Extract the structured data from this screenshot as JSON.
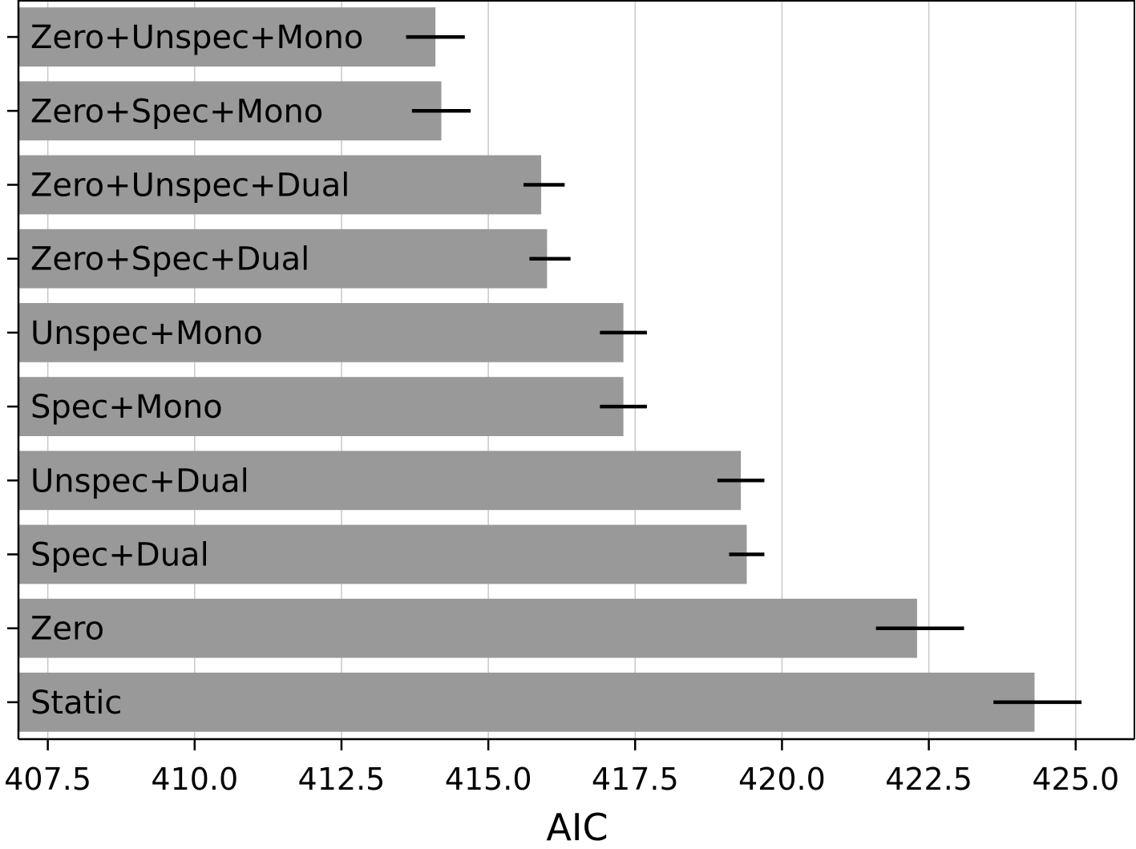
{
  "chart_data": {
    "type": "bar",
    "orientation": "horizontal",
    "title": "",
    "xlabel": "AIC",
    "ylabel": "",
    "categories": [
      "Zero+Unspec+Mono",
      "Zero+Spec+Mono",
      "Zero+Unspec+Dual",
      "Zero+Spec+Dual",
      "Unspec+Mono",
      "Spec+Mono",
      "Unspec+Dual",
      "Spec+Dual",
      "Zero",
      "Static"
    ],
    "values": [
      414.1,
      414.2,
      415.9,
      416.0,
      417.3,
      417.3,
      419.3,
      419.4,
      422.3,
      424.3
    ],
    "error_low": [
      413.6,
      413.7,
      415.6,
      415.7,
      416.9,
      416.9,
      418.9,
      419.1,
      421.6,
      423.6
    ],
    "error_high": [
      414.6,
      414.7,
      416.3,
      416.4,
      417.7,
      417.7,
      419.7,
      419.7,
      423.1,
      425.1
    ],
    "xlim": [
      407.0,
      426.0
    ],
    "xticks": [
      407.5,
      410.0,
      412.5,
      415.0,
      417.5,
      420.0,
      422.5,
      425.0
    ],
    "xtick_labels": [
      "407.5",
      "410.0",
      "412.5",
      "415.0",
      "417.5",
      "420.0",
      "422.5",
      "425.0"
    ],
    "grid": "x",
    "bar_color": "#999999",
    "error_color": "#000000"
  }
}
